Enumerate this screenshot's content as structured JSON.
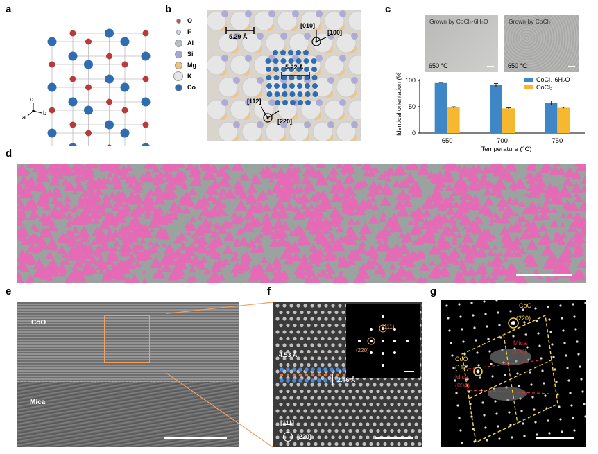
{
  "panels": {
    "a": "a",
    "b": "b",
    "c": "c",
    "d": "d",
    "e": "e",
    "f": "f",
    "g": "g"
  },
  "axes_a": {
    "c": "c",
    "a": "a",
    "b": "b"
  },
  "legend_b": {
    "items": [
      {
        "label": "O",
        "color": "#c0504d"
      },
      {
        "label": "F",
        "color": "#b7dfe6"
      },
      {
        "label": "Al",
        "color": "#b8bcbf"
      },
      {
        "label": "Si",
        "color": "#a6a5d6"
      },
      {
        "label": "Mg",
        "color": "#f0c080"
      },
      {
        "label": "K",
        "color": "#e6e6e6"
      },
      {
        "label": "Co",
        "color": "#2f6cb0"
      }
    ]
  },
  "panel_b": {
    "dist1": "5.29 Å",
    "dist2": "5.22 Å",
    "dir_010": "[010]",
    "dir_100": "[100]",
    "dir_112": "[112]",
    "dir_220": "[220]"
  },
  "panel_c": {
    "inset1_label": "Grown by CoCl₂·6H₂O",
    "inset2_label": "Grown by CoCl₂",
    "inset1_temp": "650 °C",
    "inset2_temp": "650 °C"
  },
  "chart_data": {
    "type": "bar",
    "categories": [
      "650",
      "700",
      "750"
    ],
    "series": [
      {
        "name": "CoCl₂·6H₂O",
        "values": [
          95,
          91,
          57
        ],
        "errors": [
          1,
          3,
          4
        ],
        "color": "#3f86c6"
      },
      {
        "name": "CoCl₂",
        "values": [
          49,
          47,
          48
        ],
        "errors": [
          1,
          1,
          1
        ],
        "color": "#f5b82e"
      }
    ],
    "xlabel": "Temperature (°C)",
    "ylabel": "Identical orientation (%)",
    "ylim": [
      0,
      100
    ],
    "yticks": [
      0,
      50,
      100
    ],
    "legend": "top-right"
  },
  "panel_e": {
    "top": "CoO",
    "bottom": "Mica"
  },
  "panel_f": {
    "d1": "4.53 Å",
    "d2": "2.46 Å",
    "fft_a": "(111)",
    "fft_b": "(220)",
    "dir_111": "[111]",
    "dir_220": "[220]"
  },
  "panel_g": {
    "coo": "CoO",
    "coo_220": "(220)",
    "coo2": "CoO",
    "coo_111": "(111)",
    "mica1": "Mica",
    "mica_100": "(100)",
    "mica2": "Mica",
    "mica_004": "(004)"
  }
}
